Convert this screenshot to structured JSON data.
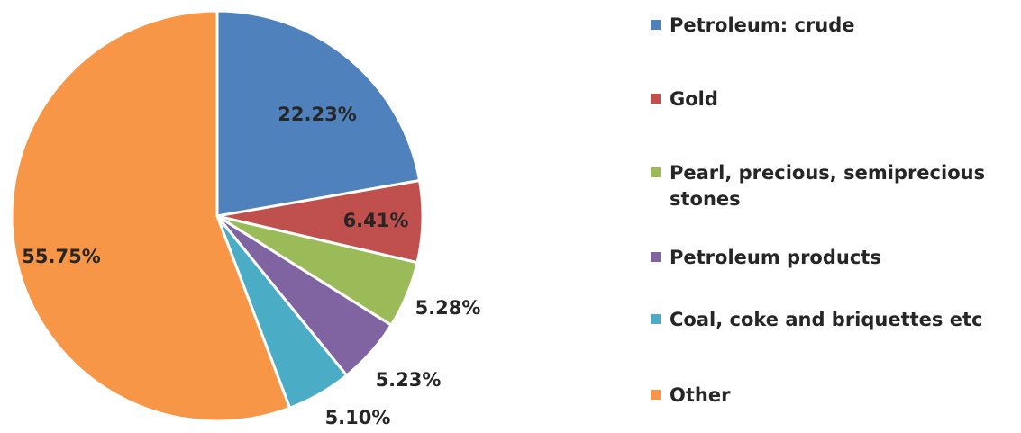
{
  "chart_data": {
    "type": "pie",
    "title": "",
    "legend_position": "right",
    "slices": [
      {
        "label": "Petroleum: crude",
        "value": 22.23,
        "display": "22.23%",
        "color": "#4f81bd"
      },
      {
        "label": "Gold",
        "value": 6.41,
        "display": "6.41%",
        "color": "#c0504d"
      },
      {
        "label": "Pearl, precious, semiprecious stones",
        "value": 5.28,
        "display": "5.28%",
        "color": "#9bbb59"
      },
      {
        "label": "Petroleum products",
        "value": 5.23,
        "display": "5.23%",
        "color": "#8064a2"
      },
      {
        "label": "Coal, coke and briquettes etc",
        "value": 5.1,
        "display": "5.10%",
        "color": "#4bacc6"
      },
      {
        "label": "Other",
        "value": 55.75,
        "display": "55.75%",
        "color": "#f79646"
      }
    ]
  }
}
